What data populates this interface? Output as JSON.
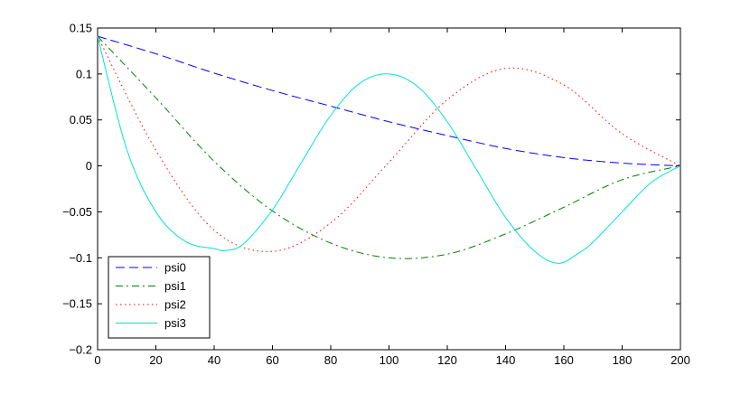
{
  "chart_data": {
    "type": "line",
    "title": "",
    "xlabel": "",
    "ylabel": "",
    "xlim": [
      0,
      200
    ],
    "ylim": [
      -0.2,
      0.15
    ],
    "xticks": [
      0,
      20,
      40,
      60,
      80,
      100,
      120,
      140,
      160,
      180,
      200
    ],
    "yticks": [
      -0.2,
      -0.15,
      -0.1,
      -0.05,
      0,
      0.05,
      0.1,
      0.15
    ],
    "xtick_labels": [
      "0",
      "20",
      "40",
      "60",
      "80",
      "100",
      "120",
      "140",
      "160",
      "180",
      "200"
    ],
    "ytick_labels": [
      "−0.2",
      "−0.15",
      "−0.1",
      "−0.05",
      "0",
      "0.05",
      "0.1",
      "0.15"
    ],
    "grid": false,
    "legend_position": "bottom-left",
    "series": [
      {
        "name": "psi0",
        "color": "#0000ff",
        "dash": "dashed",
        "x": [
          0,
          20,
          40,
          60,
          80,
          100,
          120,
          140,
          160,
          180,
          200
        ],
        "y": [
          0.141,
          0.122,
          0.101,
          0.082,
          0.065,
          0.048,
          0.033,
          0.019,
          0.009,
          0.003,
          0.0
        ]
      },
      {
        "name": "psi1",
        "color": "#008000",
        "dash": "dashdot",
        "x": [
          0,
          20,
          40,
          60,
          80,
          100,
          120,
          140,
          160,
          180,
          200
        ],
        "y": [
          0.141,
          0.074,
          0.005,
          -0.049,
          -0.084,
          -0.1,
          -0.096,
          -0.074,
          -0.045,
          -0.015,
          0.0
        ]
      },
      {
        "name": "psi2",
        "color": "#ff0000",
        "dash": "dotted",
        "x": [
          0,
          20,
          40,
          60,
          80,
          100,
          120,
          140,
          160,
          180,
          200
        ],
        "y": [
          0.141,
          0.017,
          -0.07,
          -0.093,
          -0.062,
          0.004,
          0.072,
          0.106,
          0.088,
          0.035,
          0.0
        ]
      },
      {
        "name": "psi3",
        "color": "#00e5c8",
        "dash": "solid",
        "x": [
          0,
          10,
          20,
          30,
          40,
          44,
          50,
          60,
          70,
          80,
          90,
          100,
          110,
          120,
          130,
          140,
          150,
          158,
          165,
          170,
          180,
          190,
          200
        ],
        "y": [
          0.141,
          0.018,
          -0.05,
          -0.082,
          -0.09,
          -0.092,
          -0.085,
          -0.048,
          0.004,
          0.055,
          0.09,
          0.1,
          0.086,
          0.048,
          -0.004,
          -0.056,
          -0.093,
          -0.106,
          -0.095,
          -0.083,
          -0.05,
          -0.018,
          0.0
        ]
      }
    ]
  }
}
